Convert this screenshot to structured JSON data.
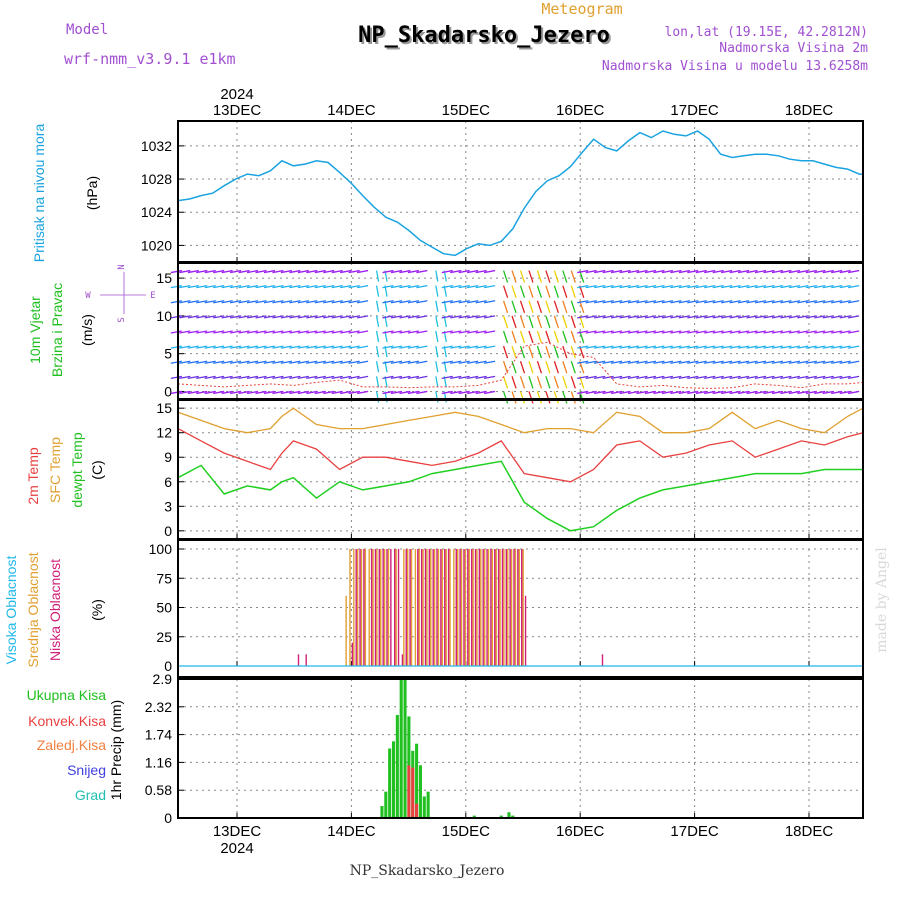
{
  "header": {
    "model_label": "Model",
    "model_name": "wrf-nmm_v3.9.1 e1km",
    "meteogram_label": "Meteogram",
    "station": "NP_Skadarsko_Jezero",
    "coords": "lon,lat (19.15E, 42.2812N)",
    "elevation": "Nadmorska Visina 2m",
    "model_elevation": "Nadmorska Visina u modelu 13.6258m",
    "footer_station": "NP_Skadarsko_Jezero",
    "watermark": "made by Angel"
  },
  "time_axis": {
    "year": "2024",
    "days": [
      "13DEC",
      "14DEC",
      "15DEC",
      "16DEC",
      "17DEC",
      "18DEC"
    ]
  },
  "colors": {
    "pressure": "#1aa3e0",
    "t2m": "#e84040",
    "tsfc": "#e0a030",
    "dewpt": "#20d020",
    "high_cloud": "#20b8e8",
    "mid_cloud": "#e0a030",
    "low_cloud": "#d0207a",
    "total_precip": "#20c020",
    "conv_precip": "#e84040",
    "frozen_precip": "#f08040",
    "snow": "#4040e0",
    "graupel": "#20c0b0",
    "model_label": "#a050d0",
    "title_label": "#e0a030"
  },
  "panels": {
    "pressure": {
      "ylabel1": "Pritisak na nivou mora",
      "ylabel2": "(hPa)",
      "yticks": [
        "1020",
        "1024",
        "1028",
        "1032"
      ]
    },
    "wind": {
      "ylabel1": "10m Vjetar",
      "ylabel2": "Brzina i Pravac",
      "ylabel3": "(m/s)",
      "compass_n": "N",
      "compass_s": "S",
      "compass_w": "W",
      "compass_e": "E",
      "yticks": [
        "0",
        "5",
        "10",
        "15"
      ]
    },
    "temp": {
      "ylabel1": "2m Temp",
      "ylabel2": "SFC Temp",
      "ylabel3": "dewpt Temp",
      "ylabel4": "(C)",
      "yticks": [
        "0",
        "3",
        "6",
        "9",
        "12",
        "15"
      ]
    },
    "cloud": {
      "ylabel1": "Visoka Oblacnost",
      "ylabel2": "Srednja Oblacnost",
      "ylabel3": "Niska Oblacnost",
      "ylabel4": "(%)",
      "yticks": [
        "0",
        "25",
        "50",
        "75",
        "100"
      ]
    },
    "precip": {
      "legend": [
        "Ukupna Kisa",
        "Konvek.Kisa",
        "Zaledj.Kisa",
        "Snijeg",
        "Grad"
      ],
      "ylabel": "1hr Precip (mm)",
      "yticks": [
        "0",
        "0.58",
        "1.16",
        "1.74",
        "2.32",
        "2.9"
      ]
    }
  },
  "chart_data": [
    {
      "type": "line",
      "series": [
        {
          "name": "Pritisak na nivou mora",
          "x": [
            0,
            3,
            6,
            9,
            12,
            15,
            18,
            21,
            24,
            27,
            30,
            33,
            36,
            39,
            42,
            45,
            48,
            51,
            54,
            57,
            60,
            63,
            66,
            69,
            72,
            75,
            78,
            81,
            84,
            87,
            90,
            93,
            96,
            99,
            102,
            105,
            108,
            111,
            114,
            117,
            120,
            123,
            126,
            129,
            132,
            135,
            138,
            141,
            144,
            147,
            150,
            153,
            156,
            159,
            162,
            165,
            168,
            171,
            174,
            177,
            178
          ],
          "values": [
            1025.4,
            1025.6,
            1026.0,
            1026.3,
            1027.2,
            1028.0,
            1028.6,
            1028.4,
            1029.0,
            1030.2,
            1029.6,
            1029.8,
            1030.2,
            1030.0,
            1028.8,
            1027.5,
            1026.0,
            1024.6,
            1023.4,
            1022.8,
            1021.8,
            1020.6,
            1019.8,
            1019.0,
            1018.8,
            1019.6,
            1020.2,
            1020.0,
            1020.5,
            1022.0,
            1024.5,
            1026.5,
            1027.8,
            1028.4,
            1029.5,
            1031.2,
            1032.8,
            1031.8,
            1031.4,
            1032.6,
            1033.6,
            1033.0,
            1033.8,
            1033.4,
            1033.2,
            1033.8,
            1032.8,
            1031.0,
            1030.6,
            1030.8,
            1031.0,
            1031.0,
            1030.8,
            1030.4,
            1030.2,
            1030.2,
            1029.8,
            1029.4,
            1029.2,
            1028.6,
            1028.6
          ]
        }
      ],
      "ylim": [
        1018,
        1035
      ]
    },
    {
      "type": "scatter",
      "series": [
        {
          "name": "Brzina",
          "x": [
            0,
            6,
            12,
            18,
            24,
            30,
            36,
            42,
            48,
            54,
            60,
            66,
            72,
            78,
            84,
            90,
            96,
            102,
            108,
            114,
            120,
            126,
            132,
            138,
            144,
            150,
            156,
            162,
            168,
            174,
            178
          ],
          "values": [
            1.0,
            0.8,
            0.6,
            0.8,
            1.0,
            0.8,
            1.2,
            1.5,
            0.6,
            0.6,
            0.5,
            0.6,
            0.6,
            0.8,
            1.5,
            6.0,
            6.5,
            5.0,
            4.5,
            1.0,
            0.6,
            0.8,
            0.5,
            0.4,
            0.5,
            1.0,
            0.8,
            0.5,
            1.0,
            1.0,
            1.2
          ]
        }
      ],
      "ylim": [
        -1,
        17
      ]
    },
    {
      "type": "line",
      "series": [
        {
          "name": "2m Temp",
          "x": [
            0,
            6,
            12,
            18,
            24,
            27,
            30,
            36,
            42,
            48,
            54,
            60,
            66,
            72,
            78,
            84,
            90,
            96,
            102,
            108,
            114,
            120,
            126,
            132,
            138,
            144,
            150,
            156,
            162,
            168,
            174,
            178
          ],
          "values": [
            12.5,
            11.0,
            9.5,
            8.5,
            7.5,
            9.5,
            11.0,
            10.0,
            7.5,
            9.0,
            9.0,
            8.5,
            8.0,
            8.5,
            9.5,
            11.0,
            7.0,
            6.5,
            6.0,
            7.5,
            10.5,
            11.0,
            9.0,
            9.5,
            10.5,
            11.0,
            9.0,
            10.0,
            11.0,
            10.5,
            11.5,
            12.0
          ]
        },
        {
          "name": "SFC Temp",
          "x": [
            0,
            6,
            12,
            18,
            24,
            27,
            30,
            36,
            42,
            48,
            54,
            60,
            66,
            72,
            78,
            84,
            90,
            96,
            102,
            108,
            114,
            120,
            126,
            132,
            138,
            144,
            150,
            156,
            162,
            168,
            174,
            178
          ],
          "values": [
            14.5,
            13.5,
            12.5,
            12.0,
            12.5,
            14.0,
            15.0,
            13.0,
            12.5,
            12.5,
            13.0,
            13.5,
            14.0,
            14.5,
            14.0,
            13.0,
            12.0,
            12.5,
            12.5,
            12.0,
            14.5,
            14.0,
            12.0,
            12.0,
            12.5,
            14.5,
            12.5,
            13.5,
            12.5,
            12.0,
            14.0,
            15.0
          ]
        },
        {
          "name": "dewpt Temp",
          "x": [
            0,
            6,
            12,
            18,
            24,
            27,
            30,
            36,
            42,
            48,
            54,
            60,
            66,
            72,
            78,
            84,
            90,
            96,
            102,
            108,
            114,
            120,
            126,
            132,
            138,
            144,
            150,
            156,
            162,
            168,
            174,
            178
          ],
          "values": [
            6.5,
            8.0,
            4.5,
            5.5,
            5.0,
            6.0,
            6.5,
            4.0,
            6.0,
            5.0,
            5.5,
            6.0,
            7.0,
            7.5,
            8.0,
            8.5,
            3.5,
            1.5,
            0.0,
            0.5,
            2.5,
            4.0,
            5.0,
            5.5,
            6.0,
            6.5,
            7.0,
            7.0,
            7.0,
            7.5,
            7.5,
            7.5
          ]
        }
      ],
      "ylim": [
        -1,
        16
      ]
    },
    {
      "type": "bar",
      "series": [
        {
          "name": "Visoka Oblacnost",
          "x": [],
          "values": []
        },
        {
          "name": "Srednja Oblacnost",
          "x": [
            44,
            45,
            46,
            47,
            48,
            49,
            50,
            51,
            52,
            53,
            54,
            55,
            57,
            59,
            60,
            61,
            62,
            63,
            64,
            65,
            66,
            67,
            68,
            69,
            70,
            71,
            72,
            73,
            74,
            75,
            76,
            77,
            78,
            79,
            80,
            81,
            82,
            83,
            84,
            85,
            86,
            87,
            88,
            89,
            90
          ],
          "values": [
            60,
            100,
            100,
            100,
            100,
            100,
            100,
            100,
            100,
            100,
            100,
            100,
            100,
            100,
            100,
            100,
            100,
            100,
            100,
            100,
            100,
            100,
            100,
            100,
            100,
            100,
            100,
            100,
            100,
            100,
            100,
            100,
            100,
            100,
            100,
            100,
            100,
            100,
            100,
            100,
            100,
            100,
            100,
            100,
            100
          ]
        },
        {
          "name": "Niska Oblacnost",
          "x": [
            31,
            33,
            45,
            46,
            47,
            48,
            50,
            51,
            52,
            53,
            54,
            55,
            56,
            57,
            58,
            59,
            60,
            62,
            63,
            64,
            65,
            66,
            67,
            68,
            69,
            70,
            72,
            73,
            74,
            75,
            76,
            77,
            78,
            79,
            80,
            81,
            82,
            83,
            84,
            85,
            86,
            87,
            88,
            89,
            90,
            110
          ],
          "values": [
            10,
            10,
            20,
            100,
            100,
            100,
            100,
            100,
            100,
            100,
            100,
            100,
            100,
            100,
            10,
            100,
            100,
            100,
            100,
            100,
            100,
            100,
            100,
            100,
            100,
            100,
            100,
            100,
            100,
            100,
            100,
            100,
            100,
            100,
            100,
            100,
            100,
            100,
            100,
            100,
            100,
            100,
            100,
            100,
            60,
            10
          ]
        }
      ],
      "ylim": [
        0,
        100
      ]
    },
    {
      "type": "bar",
      "series": [
        {
          "name": "Ukupna Kisa",
          "x": [
            53,
            54,
            55,
            56,
            57,
            58,
            59,
            60,
            61,
            62,
            63,
            64,
            65,
            77,
            84,
            85,
            86,
            87,
            88
          ],
          "values": [
            0.25,
            0.55,
            1.45,
            1.6,
            2.15,
            2.9,
            2.9,
            2.12,
            1.4,
            1.55,
            1.1,
            0.45,
            0.55,
            0.05,
            0.05,
            0.02,
            0.12,
            0.05,
            0.02
          ]
        },
        {
          "name": "Konvek.Kisa",
          "x": [
            60,
            61,
            62
          ],
          "values": [
            1.1,
            1.05,
            0.3
          ]
        }
      ],
      "ylim": [
        0,
        2.9
      ]
    }
  ]
}
